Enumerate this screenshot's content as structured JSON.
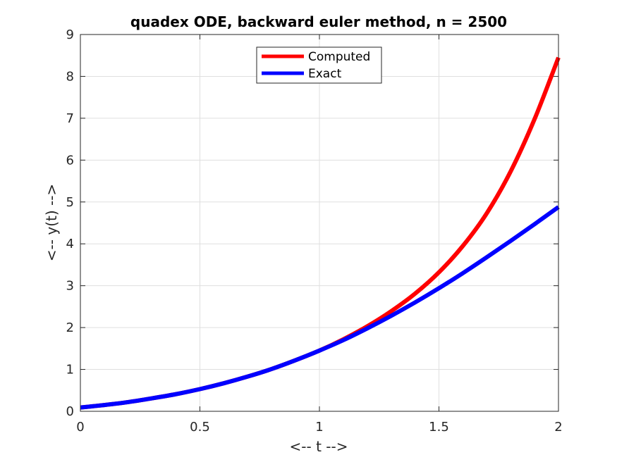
{
  "chart_data": {
    "type": "line",
    "title": "quadex ODE, backward euler method, n = 2500",
    "xlabel": "<-- t -->",
    "ylabel": "<-- y(t) -->",
    "xlim": [
      0,
      2
    ],
    "ylim": [
      0,
      9
    ],
    "xticks": [
      "0",
      "0.5",
      "1",
      "1.5",
      "2"
    ],
    "yticks": [
      "0",
      "1",
      "2",
      "3",
      "4",
      "5",
      "6",
      "7",
      "8",
      "9"
    ],
    "grid": true,
    "legend_position": "top-center",
    "series": [
      {
        "name": "Computed",
        "color": "#ff0000",
        "x": [
          0,
          0.1,
          0.2,
          0.3,
          0.4,
          0.5,
          0.6,
          0.7,
          0.8,
          0.9,
          1.0,
          1.1,
          1.2,
          1.3,
          1.4,
          1.5,
          1.6,
          1.7,
          1.8,
          1.9,
          2.0
        ],
        "y": [
          0.09,
          0.15,
          0.22,
          0.31,
          0.41,
          0.53,
          0.67,
          0.83,
          1.01,
          1.22,
          1.45,
          1.72,
          2.03,
          2.39,
          2.81,
          3.32,
          3.95,
          4.73,
          5.73,
          6.98,
          8.45
        ]
      },
      {
        "name": "Exact",
        "color": "#0000ff",
        "x": [
          0,
          0.1,
          0.2,
          0.3,
          0.4,
          0.5,
          0.6,
          0.7,
          0.8,
          0.9,
          1.0,
          1.1,
          1.2,
          1.3,
          1.4,
          1.5,
          1.6,
          1.7,
          1.8,
          1.9,
          2.0
        ],
        "y": [
          0.09,
          0.15,
          0.22,
          0.31,
          0.41,
          0.53,
          0.67,
          0.83,
          1.01,
          1.22,
          1.45,
          1.7,
          1.98,
          2.28,
          2.6,
          2.94,
          3.3,
          3.68,
          4.07,
          4.47,
          4.88
        ]
      }
    ]
  }
}
